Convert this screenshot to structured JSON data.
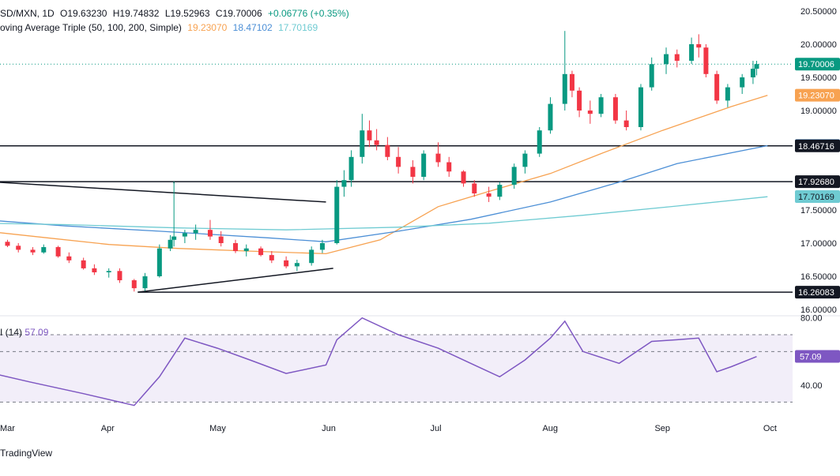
{
  "header": {
    "symbol": "SD/MXN, 1D",
    "open": "O19.63230",
    "high": "H19.74832",
    "low": "L19.52963",
    "close": "C19.70006",
    "change": "+0.06776 (+0.35%)",
    "ma_label": "oving Average Triple (50, 100, 200, Simple)",
    "ma50": "19.23070",
    "ma100": "18.47102",
    "ma200": "17.70169"
  },
  "rsi_header": {
    "label": "I (14)",
    "value": "57.09"
  },
  "footer": {
    "brand": "TradingView"
  },
  "colors": {
    "up": "#089981",
    "down": "#f23645",
    "ma50": "#f7a251",
    "ma100": "#4c8fd6",
    "ma200": "#6fcbd2",
    "rsi": "#7e57c2",
    "rsi_band": "#ede7f6",
    "last_price_tag": "#089981",
    "level_tag": "#131722"
  },
  "chart_data": [
    {
      "type": "candlestick",
      "title": "SD/MXN, 1D",
      "ylim": [
        16.0,
        20.5
      ],
      "y_ticks": [
        "20.50000",
        "20.00000",
        "19.50000",
        "19.00000",
        "17.50000",
        "17.00000",
        "16.50000",
        "16.00000"
      ],
      "x_ticks": [
        "Mar",
        "Apr",
        "May",
        "Jun",
        "Jul",
        "Aug",
        "Sep",
        "Oct"
      ],
      "x_tick_dates": [
        "2024-03-01",
        "2024-04-01",
        "2024-05-01",
        "2024-06-01",
        "2024-07-01",
        "2024-08-01",
        "2024-09-01",
        "2024-10-01"
      ],
      "price_tags": [
        {
          "label": "19.70006",
          "value": 19.70006,
          "kind": "last"
        },
        {
          "label": "19.23070",
          "value": 19.2307,
          "kind": "ma50"
        },
        {
          "label": "18.47102",
          "value": 18.47102,
          "kind": "ma100"
        },
        {
          "label": "18.46716",
          "value": 18.46716,
          "kind": "level"
        },
        {
          "label": "17.92680",
          "value": 17.9268,
          "kind": "level"
        },
        {
          "label": "17.70169",
          "value": 17.70169,
          "kind": "ma200"
        },
        {
          "label": "16.26083",
          "value": 16.26083,
          "kind": "level"
        }
      ],
      "horizontal_levels": [
        18.46716,
        17.9268,
        16.26083
      ],
      "trendlines": [
        {
          "from": [
            "2024-02-27",
            17.93
          ],
          "to": [
            "2024-05-31",
            17.62
          ]
        },
        {
          "from": [
            "2024-04-09",
            16.26
          ],
          "to": [
            "2024-06-02",
            16.62
          ]
        }
      ],
      "series": [
        {
          "name": "50",
          "kind": "ma",
          "points": [
            [
              "2024-02-27",
              17.18
            ],
            [
              "2024-03-15",
              17.08
            ],
            [
              "2024-04-01",
              16.98
            ],
            [
              "2024-04-20",
              16.92
            ],
            [
              "2024-05-10",
              16.88
            ],
            [
              "2024-05-31",
              16.84
            ],
            [
              "2024-06-15",
              17.05
            ],
            [
              "2024-07-01",
              17.55
            ],
            [
              "2024-07-15",
              17.78
            ],
            [
              "2024-08-01",
              18.05
            ],
            [
              "2024-08-15",
              18.35
            ],
            [
              "2024-09-01",
              18.7
            ],
            [
              "2024-09-20",
              19.06
            ],
            [
              "2024-09-30",
              19.23
            ]
          ]
        },
        {
          "name": "100",
          "kind": "ma",
          "points": [
            [
              "2024-02-27",
              17.35
            ],
            [
              "2024-03-20",
              17.26
            ],
            [
              "2024-04-15",
              17.18
            ],
            [
              "2024-05-15",
              17.08
            ],
            [
              "2024-05-31",
              17.02
            ],
            [
              "2024-06-20",
              17.18
            ],
            [
              "2024-07-10",
              17.36
            ],
            [
              "2024-08-01",
              17.62
            ],
            [
              "2024-08-20",
              17.92
            ],
            [
              "2024-09-05",
              18.2
            ],
            [
              "2024-09-30",
              18.47
            ]
          ]
        },
        {
          "name": "200",
          "kind": "ma",
          "points": [
            [
              "2024-02-27",
              17.3
            ],
            [
              "2024-03-20",
              17.28
            ],
            [
              "2024-04-20",
              17.23
            ],
            [
              "2024-05-20",
              17.2
            ],
            [
              "2024-06-20",
              17.24
            ],
            [
              "2024-07-15",
              17.3
            ],
            [
              "2024-08-10",
              17.42
            ],
            [
              "2024-09-05",
              17.56
            ],
            [
              "2024-09-30",
              17.7
            ]
          ]
        },
        {
          "name": "USD/MXN",
          "kind": "candles",
          "ohlc": [
            [
              "2024-02-27",
              17.12,
              17.16,
              17.05,
              17.08
            ],
            [
              "2024-03-01",
              17.08,
              17.1,
              16.98,
              17.02
            ],
            [
              "2024-03-04",
              17.02,
              17.05,
              16.94,
              16.96
            ],
            [
              "2024-03-07",
              16.96,
              17.0,
              16.86,
              16.9
            ],
            [
              "2024-03-11",
              16.9,
              16.94,
              16.82,
              16.86
            ],
            [
              "2024-03-14",
              16.86,
              16.98,
              16.84,
              16.94
            ],
            [
              "2024-03-18",
              16.94,
              16.96,
              16.78,
              16.8
            ],
            [
              "2024-03-21",
              16.8,
              16.86,
              16.7,
              16.74
            ],
            [
              "2024-03-25",
              16.74,
              16.78,
              16.6,
              16.62
            ],
            [
              "2024-03-28",
              16.62,
              16.68,
              16.52,
              16.56
            ],
            [
              "2024-04-01",
              16.56,
              16.62,
              16.48,
              16.58
            ],
            [
              "2024-04-04",
              16.58,
              16.62,
              16.4,
              16.44
            ],
            [
              "2024-04-08",
              16.44,
              16.46,
              16.27,
              16.32
            ],
            [
              "2024-04-11",
              16.32,
              16.55,
              16.28,
              16.5
            ],
            [
              "2024-04-15",
              16.5,
              16.98,
              16.48,
              16.92
            ],
            [
              "2024-04-18",
              16.92,
              17.12,
              16.88,
              17.05
            ],
            [
              "2024-04-19",
              17.05,
              17.93,
              16.95,
              17.1
            ],
            [
              "2024-04-22",
              17.1,
              17.2,
              17.0,
              17.15
            ],
            [
              "2024-04-25",
              17.15,
              17.28,
              17.05,
              17.2
            ],
            [
              "2024-04-29",
              17.2,
              17.35,
              17.05,
              17.1
            ],
            [
              "2024-05-02",
              17.1,
              17.18,
              16.95,
              17.0
            ],
            [
              "2024-05-06",
              17.0,
              17.05,
              16.85,
              16.88
            ],
            [
              "2024-05-09",
              16.88,
              16.98,
              16.8,
              16.92
            ],
            [
              "2024-05-13",
              16.92,
              16.95,
              16.8,
              16.82
            ],
            [
              "2024-05-16",
              16.82,
              16.88,
              16.7,
              16.74
            ],
            [
              "2024-05-20",
              16.74,
              16.8,
              16.62,
              16.65
            ],
            [
              "2024-05-23",
              16.65,
              16.75,
              16.58,
              16.7
            ],
            [
              "2024-05-27",
              16.7,
              16.95,
              16.66,
              16.9
            ],
            [
              "2024-05-30",
              16.9,
              17.05,
              16.85,
              17.0
            ],
            [
              "2024-06-03",
              17.0,
              17.95,
              16.98,
              17.85
            ],
            [
              "2024-06-05",
              17.85,
              18.1,
              17.7,
              17.95
            ],
            [
              "2024-06-07",
              17.95,
              18.4,
              17.85,
              18.3
            ],
            [
              "2024-06-10",
              18.3,
              18.95,
              18.2,
              18.7
            ],
            [
              "2024-06-12",
              18.7,
              18.85,
              18.45,
              18.55
            ],
            [
              "2024-06-14",
              18.55,
              18.72,
              18.4,
              18.48
            ],
            [
              "2024-06-17",
              18.48,
              18.6,
              18.25,
              18.3
            ],
            [
              "2024-06-20",
              18.3,
              18.45,
              18.05,
              18.15
            ],
            [
              "2024-06-24",
              18.15,
              18.25,
              17.9,
              18.0
            ],
            [
              "2024-06-27",
              18.0,
              18.4,
              17.95,
              18.35
            ],
            [
              "2024-07-01",
              18.35,
              18.52,
              18.15,
              18.22
            ],
            [
              "2024-07-04",
              18.22,
              18.3,
              18.0,
              18.08
            ],
            [
              "2024-07-08",
              18.08,
              18.1,
              17.85,
              17.9
            ],
            [
              "2024-07-11",
              17.9,
              17.95,
              17.7,
              17.75
            ],
            [
              "2024-07-15",
              17.75,
              17.85,
              17.62,
              17.7
            ],
            [
              "2024-07-18",
              17.7,
              17.92,
              17.65,
              17.88
            ],
            [
              "2024-07-22",
              17.88,
              18.2,
              17.82,
              18.15
            ],
            [
              "2024-07-25",
              18.15,
              18.4,
              18.05,
              18.35
            ],
            [
              "2024-07-29",
              18.35,
              18.75,
              18.3,
              18.7
            ],
            [
              "2024-08-01",
              18.7,
              19.2,
              18.65,
              19.1
            ],
            [
              "2024-08-05",
              19.1,
              20.2,
              19.0,
              19.55
            ],
            [
              "2024-08-07",
              19.55,
              19.6,
              19.2,
              19.3
            ],
            [
              "2024-08-09",
              19.3,
              19.35,
              18.9,
              19.0
            ],
            [
              "2024-08-12",
              19.0,
              19.15,
              18.8,
              18.95
            ],
            [
              "2024-08-15",
              18.95,
              19.25,
              18.9,
              19.2
            ],
            [
              "2024-08-19",
              19.2,
              19.25,
              18.8,
              18.85
            ],
            [
              "2024-08-22",
              18.85,
              19.0,
              18.7,
              18.75
            ],
            [
              "2024-08-26",
              18.75,
              19.4,
              18.7,
              19.35
            ],
            [
              "2024-08-29",
              19.35,
              19.8,
              19.3,
              19.7
            ],
            [
              "2024-09-02",
              19.7,
              19.95,
              19.55,
              19.85
            ],
            [
              "2024-09-05",
              19.85,
              19.92,
              19.65,
              19.75
            ],
            [
              "2024-09-09",
              19.75,
              20.1,
              19.7,
              20.0
            ],
            [
              "2024-09-11",
              20.0,
              20.15,
              19.8,
              19.95
            ],
            [
              "2024-09-13",
              19.95,
              20.0,
              19.5,
              19.55
            ],
            [
              "2024-09-16",
              19.55,
              19.6,
              19.1,
              19.15
            ],
            [
              "2024-09-19",
              19.15,
              19.4,
              19.05,
              19.35
            ],
            [
              "2024-09-23",
              19.35,
              19.55,
              19.25,
              19.5
            ],
            [
              "2024-09-26",
              19.5,
              19.75,
              19.4,
              19.63
            ],
            [
              "2024-09-27",
              19.63,
              19.75,
              19.53,
              19.7
            ]
          ]
        }
      ]
    },
    {
      "type": "line",
      "title": "I (14)",
      "ylim": [
        25,
        85
      ],
      "y_ticks": [
        "80.00",
        "40.00"
      ],
      "bands": {
        "upper": 70,
        "mid": 60,
        "lower": 30
      },
      "last_value_tag": "57.09",
      "series": [
        {
          "name": "I (14)",
          "points": [
            [
              "2024-02-27",
              48
            ],
            [
              "2024-03-10",
              42
            ],
            [
              "2024-03-25",
              35
            ],
            [
              "2024-04-08",
              28
            ],
            [
              "2024-04-15",
              45
            ],
            [
              "2024-04-22",
              68
            ],
            [
              "2024-05-01",
              62
            ],
            [
              "2024-05-10",
              55
            ],
            [
              "2024-05-20",
              47
            ],
            [
              "2024-05-31",
              52
            ],
            [
              "2024-06-03",
              67
            ],
            [
              "2024-06-10",
              80
            ],
            [
              "2024-06-20",
              70
            ],
            [
              "2024-07-01",
              62
            ],
            [
              "2024-07-10",
              53
            ],
            [
              "2024-07-18",
              45
            ],
            [
              "2024-07-25",
              55
            ],
            [
              "2024-08-01",
              68
            ],
            [
              "2024-08-05",
              78
            ],
            [
              "2024-08-10",
              60
            ],
            [
              "2024-08-20",
              53
            ],
            [
              "2024-08-29",
              66
            ],
            [
              "2024-09-05",
              67
            ],
            [
              "2024-09-11",
              68
            ],
            [
              "2024-09-16",
              48
            ],
            [
              "2024-09-20",
              51
            ],
            [
              "2024-09-27",
              57
            ]
          ]
        }
      ]
    }
  ]
}
